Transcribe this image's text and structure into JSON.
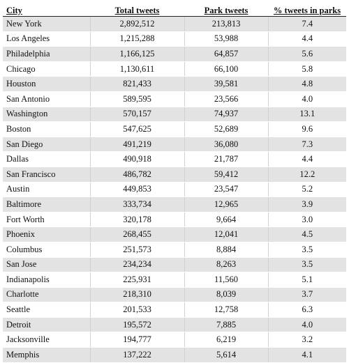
{
  "table": {
    "headers": [
      "City",
      "Total tweets",
      "Park tweets",
      "% tweets in parks"
    ],
    "rows": [
      [
        "New York",
        "2,892,512",
        "213,813",
        "7.4"
      ],
      [
        "Los Angeles",
        "1,215,288",
        "53,988",
        "4.4"
      ],
      [
        "Philadelphia",
        "1,166,125",
        "64,857",
        "5.6"
      ],
      [
        "Chicago",
        "1,130,611",
        "66,100",
        "5.8"
      ],
      [
        "Houston",
        "821,433",
        "39,581",
        "4.8"
      ],
      [
        "San Antonio",
        "589,595",
        "23,566",
        "4.0"
      ],
      [
        "Washington",
        "570,157",
        "74,937",
        "13.1"
      ],
      [
        "Boston",
        "547,625",
        "52,689",
        "9.6"
      ],
      [
        "San Diego",
        "491,219",
        "36,080",
        "7.3"
      ],
      [
        "Dallas",
        "490,918",
        "21,787",
        "4.4"
      ],
      [
        "San Francisco",
        "486,782",
        "59,412",
        "12.2"
      ],
      [
        "Austin",
        "449,853",
        "23,547",
        "5.2"
      ],
      [
        "Baltimore",
        "333,734",
        "12,965",
        "3.9"
      ],
      [
        "Fort Worth",
        "320,178",
        "9,664",
        "3.0"
      ],
      [
        "Phoenix",
        "268,455",
        "12,041",
        "4.5"
      ],
      [
        "Columbus",
        "251,573",
        "8,884",
        "3.5"
      ],
      [
        "San Jose",
        "234,234",
        "8,263",
        "3.5"
      ],
      [
        "Indianapolis",
        "225,931",
        "11,560",
        "5.1"
      ],
      [
        "Charlotte",
        "218,310",
        "8,039",
        "3.7"
      ],
      [
        "Seattle",
        "201,533",
        "12,758",
        "6.3"
      ],
      [
        "Detroit",
        "195,572",
        "7,885",
        "4.0"
      ],
      [
        "Jacksonville",
        "194,777",
        "6,219",
        "3.2"
      ],
      [
        "Memphis",
        "137,222",
        "5,614",
        "4.1"
      ]
    ]
  }
}
